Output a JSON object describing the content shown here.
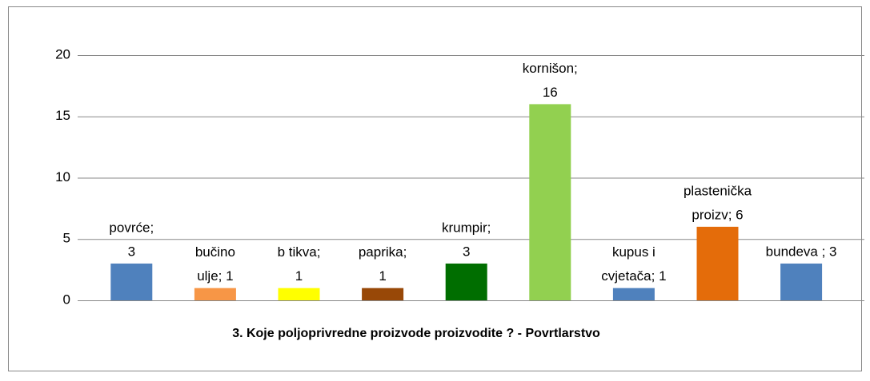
{
  "chart_data": {
    "type": "bar",
    "title": "3.  Koje poljoprivredne proizvode proizvodite ?  - Povrtlarstvo",
    "values": [
      3,
      1,
      1,
      1,
      3,
      16,
      1,
      6,
      3
    ],
    "value_labels": [
      [
        "povrće;",
        "3"
      ],
      [
        "bučino",
        "ulje; 1"
      ],
      [
        "b tikva;",
        "1"
      ],
      [
        "paprika;",
        "1"
      ],
      [
        "krumpir;",
        "3"
      ],
      [
        "kornišon;",
        "16"
      ],
      [
        "kupus i",
        "cvjetača; 1"
      ],
      [
        "plastenička",
        "proizv; 6"
      ],
      [
        "bundeva ; 3"
      ]
    ],
    "colors": [
      "#4f81bd",
      "#f79646",
      "#ffff00",
      "#984807",
      "#006e00",
      "#92d050",
      "#4f81bd",
      "#e46c0a",
      "#4f81bd"
    ],
    "ylim": [
      0,
      20
    ],
    "yticks": [
      0,
      5,
      10,
      15,
      20
    ],
    "grid": true
  }
}
